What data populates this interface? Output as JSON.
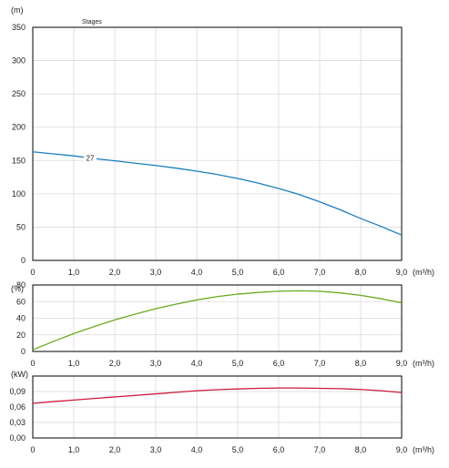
{
  "chart_data": [
    {
      "type": "line",
      "panel": "head",
      "ylabel": "(m)",
      "xlabel": "(m³/h)",
      "legend_title": "Stages",
      "xlim": [
        0,
        9
      ],
      "ylim": [
        0,
        350
      ],
      "x_ticks": [
        "0",
        "1,0",
        "2,0",
        "3,0",
        "4,0",
        "5,0",
        "6,0",
        "7,0",
        "8,0",
        "9,0"
      ],
      "y_ticks": [
        "0",
        "50",
        "100",
        "150",
        "200",
        "250",
        "300",
        "350"
      ],
      "grid": true,
      "series": [
        {
          "name": "27",
          "color": "#1a7fbf",
          "x": [
            0,
            0.5,
            1.0,
            1.5,
            2.0,
            2.5,
            3.0,
            3.5,
            4.0,
            4.5,
            5.0,
            5.5,
            6.0,
            6.5,
            7.0,
            7.5,
            8.0,
            8.5,
            9.0
          ],
          "y": [
            163,
            160,
            157,
            153,
            149.5,
            146,
            142.5,
            138.5,
            134,
            129,
            123,
            116,
            108,
            99,
            88,
            76,
            63,
            51,
            38
          ]
        }
      ]
    },
    {
      "type": "line",
      "panel": "efficiency",
      "ylabel": "(%)",
      "xlabel": "(m³/h)",
      "xlim": [
        0,
        9
      ],
      "ylim": [
        0,
        80
      ],
      "x_ticks": [
        "0",
        "1,0",
        "2,0",
        "3,0",
        "4,0",
        "5,0",
        "6,0",
        "7,0",
        "8,0",
        "9,0"
      ],
      "y_ticks": [
        "0",
        "20",
        "40",
        "60",
        "80"
      ],
      "grid": true,
      "series": [
        {
          "color": "#6aab1e",
          "x": [
            0,
            0.5,
            1.0,
            1.5,
            2.0,
            2.5,
            3.0,
            3.5,
            4.0,
            4.5,
            5.0,
            5.5,
            6.0,
            6.5,
            7.0,
            7.5,
            8.0,
            8.5,
            9.0
          ],
          "y": [
            2,
            12,
            21.5,
            30,
            38,
            45,
            51.5,
            57,
            62,
            66,
            69,
            71,
            72.5,
            73,
            72.5,
            70.5,
            67.5,
            63.5,
            58.5
          ]
        }
      ]
    },
    {
      "type": "line",
      "panel": "power",
      "ylabel": "(kW)",
      "xlabel": "(m³/h)",
      "xlim": [
        0,
        9
      ],
      "ylim": [
        0,
        0.12
      ],
      "x_ticks": [
        "0",
        "1,0",
        "2,0",
        "3,0",
        "4,0",
        "5,0",
        "6,0",
        "7,0",
        "8,0",
        "9,0"
      ],
      "y_ticks": [
        "0,00",
        "0,03",
        "0,06",
        "0,09"
      ],
      "grid": true,
      "series": [
        {
          "color": "#cc1a3a",
          "x": [
            0,
            0.5,
            1.0,
            1.5,
            2.0,
            2.5,
            3.0,
            3.5,
            4.0,
            4.5,
            5.0,
            5.5,
            6.0,
            6.5,
            7.0,
            7.5,
            8.0,
            8.5,
            9.0
          ],
          "y": [
            0.067,
            0.0705,
            0.0735,
            0.0765,
            0.0795,
            0.0825,
            0.0855,
            0.0885,
            0.0915,
            0.0935,
            0.095,
            0.0962,
            0.0968,
            0.0968,
            0.0962,
            0.0955,
            0.094,
            0.0915,
            0.088
          ]
        }
      ]
    }
  ]
}
